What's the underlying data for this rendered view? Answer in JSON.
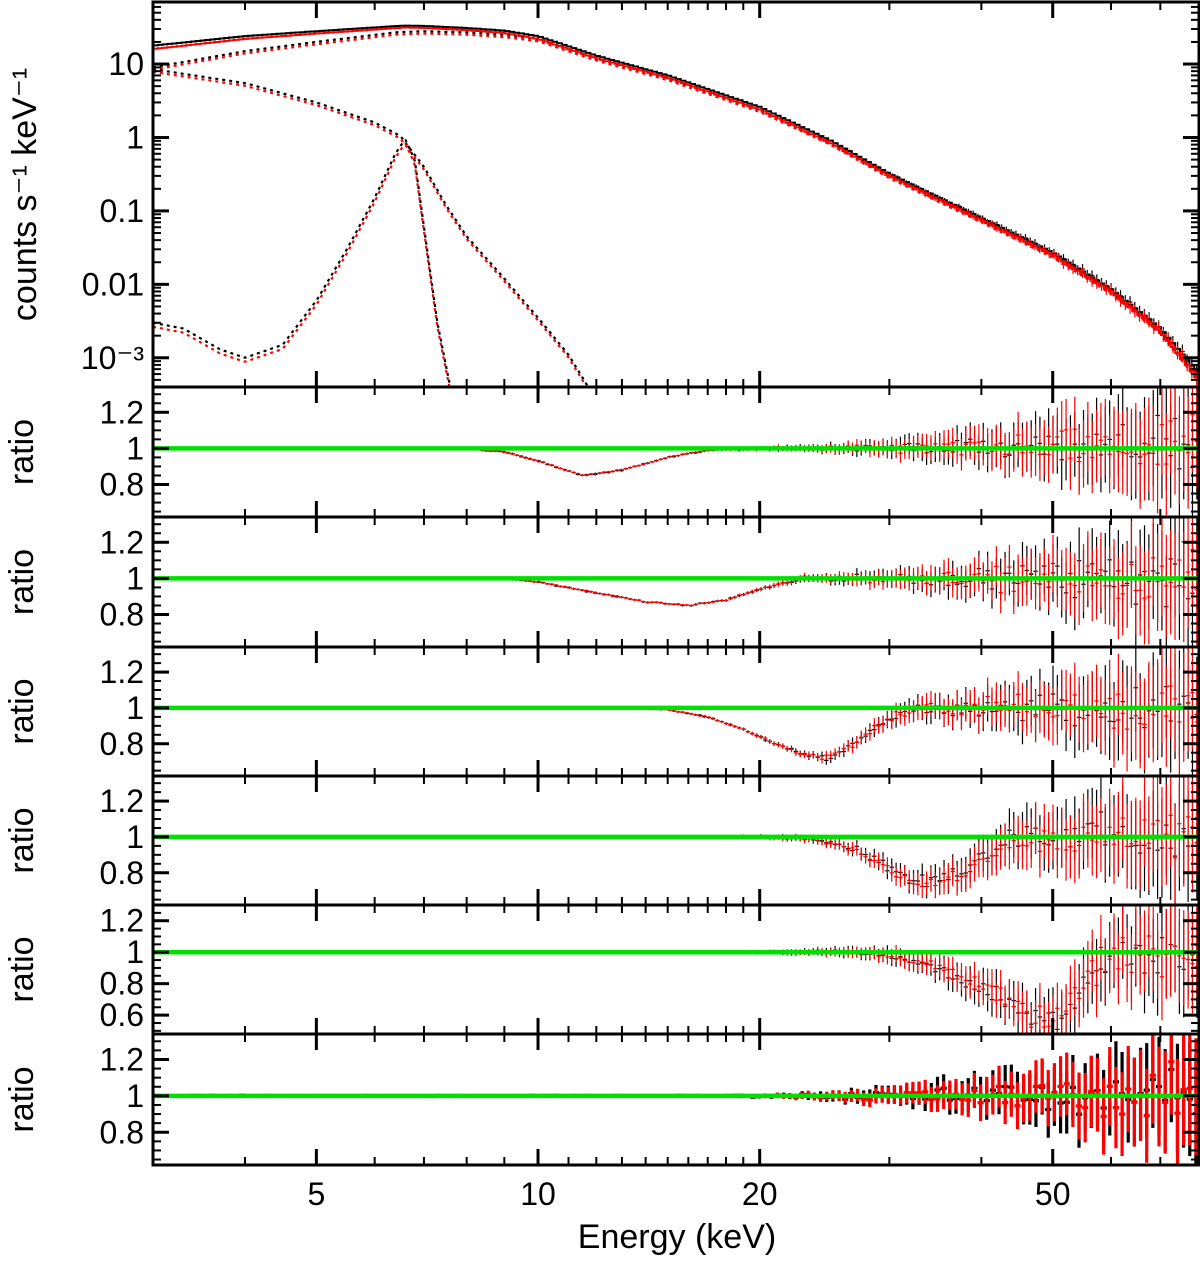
{
  "chart_data": {
    "type": "line",
    "xlabel": "Energy (keV)",
    "x_scale": "log",
    "xlim": [
      3,
      79
    ],
    "x_ticks": [
      {
        "value": 5,
        "label": "5"
      },
      {
        "value": 10,
        "label": "10"
      },
      {
        "value": 20,
        "label": "20"
      },
      {
        "value": 50,
        "label": "50"
      }
    ],
    "colors": {
      "fpma": "#000000",
      "fpmb": "#ff0000",
      "unity": "#00e000"
    },
    "panels": [
      {
        "id": "spectrum",
        "ylabel": "counts s⁻¹ keV⁻¹",
        "y_scale": "log",
        "ylim": [
          0.0004,
          70
        ],
        "y_ticks": [
          {
            "value": 10,
            "label": "10"
          },
          {
            "value": 1,
            "label": "1"
          },
          {
            "value": 0.1,
            "label": "0.1"
          },
          {
            "value": 0.01,
            "label": "0.01"
          },
          {
            "value": 0.001,
            "label": "10⁻³"
          }
        ],
        "model_black": {
          "x": [
            3,
            4,
            5,
            6,
            6.6,
            7,
            8,
            9,
            10,
            12,
            15,
            20,
            25,
            30,
            40,
            50,
            60,
            70,
            79
          ],
          "y": [
            17.8,
            24,
            28,
            31.5,
            33.5,
            33,
            31,
            28.5,
            24,
            13,
            7,
            2.6,
            0.9,
            0.32,
            0.08,
            0.027,
            0.0085,
            0.0025,
            0.0006
          ]
        },
        "model_red": {
          "x": [
            3,
            4,
            5,
            6,
            6.6,
            7,
            8,
            9,
            10,
            12,
            15,
            20,
            25,
            30,
            40,
            50,
            60,
            70,
            79
          ],
          "y": [
            16,
            22,
            26,
            29.5,
            31.5,
            31,
            29,
            26.5,
            22,
            12,
            6.5,
            2.4,
            0.83,
            0.3,
            0.075,
            0.025,
            0.008,
            0.0023,
            0.0005
          ]
        },
        "comp_thermal": {
          "x": [
            3,
            4,
            5,
            6,
            6.4,
            7,
            8,
            9,
            10,
            12,
            15,
            20,
            25,
            30,
            40,
            50,
            60,
            70,
            79
          ],
          "y": [
            9,
            15,
            20,
            25,
            27,
            28,
            27,
            25,
            22,
            12,
            6.5,
            2.4,
            0.85,
            0.3,
            0.075,
            0.025,
            0.008,
            0.0023,
            0.0005
          ]
        },
        "comp_soft": {
          "x": [
            3,
            4,
            5,
            6,
            6.5,
            7,
            7.5,
            8,
            9,
            10,
            11,
            11.7
          ],
          "y": [
            8.5,
            5.5,
            3,
            1.6,
            1.05,
            0.4,
            0.12,
            0.045,
            0.012,
            0.0035,
            0.0011,
            0.0004
          ]
        },
        "comp_line": {
          "x": [
            3,
            3.3,
            3.7,
            4,
            4.5,
            5,
            5.5,
            6,
            6.4,
            6.6,
            6.8,
            7,
            7.3,
            7.6
          ],
          "y": [
            0.003,
            0.0025,
            0.0013,
            0.001,
            0.0015,
            0.006,
            0.03,
            0.15,
            0.6,
            0.95,
            0.5,
            0.06,
            0.003,
            0.0004
          ]
        }
      },
      {
        "id": "ratio-1",
        "ylabel": "ratio",
        "ylim": [
          0.62,
          1.34
        ],
        "y_ticks": [
          {
            "value": 1.2,
            "label": "1.2"
          },
          {
            "value": 1,
            "label": "1"
          },
          {
            "value": 0.8,
            "label": "0.8"
          }
        ],
        "unity": 1,
        "feature": {
          "x": [
            3,
            8,
            9,
            10,
            11.5,
            13,
            15,
            17,
            20,
            30,
            79
          ],
          "y": [
            1,
            1,
            0.98,
            0.93,
            0.85,
            0.88,
            0.95,
            0.99,
            1,
            1,
            1
          ]
        }
      },
      {
        "id": "ratio-2",
        "ylabel": "ratio",
        "ylim": [
          0.62,
          1.34
        ],
        "y_ticks": [
          {
            "value": 1.2,
            "label": "1.2"
          },
          {
            "value": 1,
            "label": "1"
          },
          {
            "value": 0.8,
            "label": "0.8"
          }
        ],
        "unity": 1,
        "feature": {
          "x": [
            3,
            9,
            10,
            12,
            14,
            16,
            18,
            20,
            23,
            30,
            79
          ],
          "y": [
            1,
            1,
            0.98,
            0.92,
            0.87,
            0.85,
            0.88,
            0.94,
            1,
            1,
            1
          ]
        }
      },
      {
        "id": "ratio-3",
        "ylabel": "ratio",
        "ylim": [
          0.62,
          1.34
        ],
        "y_ticks": [
          {
            "value": 1.2,
            "label": "1.2"
          },
          {
            "value": 1,
            "label": "1"
          },
          {
            "value": 0.8,
            "label": "0.8"
          }
        ],
        "unity": 1,
        "feature": {
          "x": [
            3,
            13,
            15,
            17,
            19,
            21,
            23,
            24.5,
            26,
            28,
            31,
            35,
            79
          ],
          "y": [
            1,
            1,
            0.99,
            0.95,
            0.88,
            0.8,
            0.74,
            0.72,
            0.76,
            0.86,
            0.97,
            1,
            1
          ]
        }
      },
      {
        "id": "ratio-4",
        "ylabel": "ratio",
        "ylim": [
          0.62,
          1.34
        ],
        "y_ticks": [
          {
            "value": 1.2,
            "label": "1.2"
          },
          {
            "value": 1,
            "label": "1"
          },
          {
            "value": 0.8,
            "label": "0.8"
          }
        ],
        "unity": 1,
        "feature": {
          "x": [
            3,
            20,
            24,
            27,
            30,
            32,
            34,
            37,
            40,
            44,
            79
          ],
          "y": [
            1,
            1,
            0.99,
            0.93,
            0.83,
            0.75,
            0.74,
            0.79,
            0.88,
            1,
            1
          ]
        }
      },
      {
        "id": "ratio-5",
        "ylabel": "ratio",
        "ylim": [
          0.48,
          1.3
        ],
        "y_ticks": [
          {
            "value": 1.2,
            "label": "1.2"
          },
          {
            "value": 1,
            "label": "1"
          },
          {
            "value": 0.8,
            "label": "0.8"
          },
          {
            "value": 0.6,
            "label": "0.6"
          }
        ],
        "unity": 1,
        "feature": {
          "x": [
            3,
            26,
            30,
            35,
            40,
            45,
            49,
            52,
            55,
            60,
            79
          ],
          "y": [
            1,
            1,
            0.98,
            0.9,
            0.77,
            0.64,
            0.58,
            0.63,
            0.78,
            1,
            1
          ]
        }
      },
      {
        "id": "ratio-6",
        "ylabel": "ratio",
        "ylim": [
          0.62,
          1.34
        ],
        "y_ticks": [
          {
            "value": 1.2,
            "label": "1.2"
          },
          {
            "value": 1,
            "label": "1"
          },
          {
            "value": 0.8,
            "label": "0.8"
          }
        ],
        "unity": 1,
        "feature": {
          "x": [
            3,
            79
          ],
          "y": [
            1,
            1
          ]
        }
      }
    ]
  }
}
